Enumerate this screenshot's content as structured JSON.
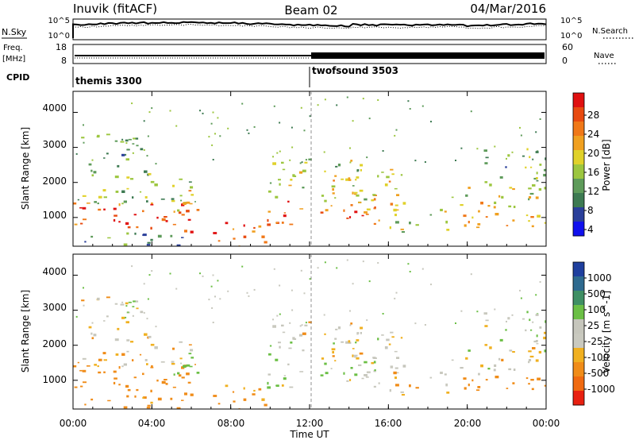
{
  "header": {
    "station": "Inuvik (fitACF)",
    "beam": "Beam 02",
    "date": "04/Mar/2016"
  },
  "noise_panel": {
    "left_label": "N.Sky",
    "right_label": "N.Search",
    "left_ticks": [
      "10^5",
      "10^0"
    ],
    "right_ticks": [
      "10^5",
      "10^0"
    ]
  },
  "freq_panel": {
    "left_label_line1": "Freq.",
    "left_label_line2": "[MHz]",
    "right_label": "Nave",
    "left_ticks": [
      "18",
      "8"
    ],
    "right_ticks": [
      "60",
      "0"
    ]
  },
  "cpid": {
    "label": "CPID",
    "segments": [
      {
        "name": "themis 3300",
        "start_hour": 0
      },
      {
        "name": "twofsound 3503",
        "start_hour": 12
      }
    ]
  },
  "x_axis": {
    "label": "Time UT",
    "ticks": [
      "00:00",
      "04:00",
      "08:00",
      "12:00",
      "16:00",
      "20:00",
      "00:00"
    ],
    "tick_hours": [
      0,
      4,
      8,
      12,
      16,
      20,
      24
    ]
  },
  "power_panel": {
    "ylabel": "Slant Range [km]",
    "yticks": [
      "1000",
      "2000",
      "3000",
      "4000"
    ],
    "colorbar_label": "Power [dB]",
    "colorbar_ticks": [
      "4",
      "8",
      "12",
      "16",
      "20",
      "24",
      "28"
    ]
  },
  "velocity_panel": {
    "ylabel": "Slant Range [km]",
    "yticks": [
      "1000",
      "2000",
      "3000",
      "4000"
    ],
    "colorbar_label": "Velocity [m s^-1]",
    "colorbar_ticks": [
      "1000",
      "500",
      "100",
      "25",
      "-25",
      "-100",
      "-500",
      "-1000"
    ]
  },
  "colors": {
    "power_scale": [
      "#1010ee",
      "#2a3f9a",
      "#3d7a52",
      "#5e9b5a",
      "#9cc63f",
      "#e0d12a",
      "#f0a020",
      "#f07818",
      "#e84a10",
      "#e01010"
    ],
    "velocity_scale": [
      "#1f3f9e",
      "#2e6a8f",
      "#3f8f64",
      "#6bbf45",
      "#c6c6bc",
      "#c9c9bf",
      "#f0b020",
      "#f08c18",
      "#f06a10",
      "#e82010"
    ]
  },
  "chart_data": {
    "type": "heatmap",
    "x_range_hours": [
      0,
      24
    ],
    "y_range_km": [
      180,
      4600
    ],
    "power_range_db": [
      0,
      30
    ],
    "velocity_range": [
      -1000,
      1000
    ],
    "scatter_regions": [
      {
        "t0": 0.0,
        "t1": 6.2,
        "r0": 600,
        "r1": 1500,
        "power": 26,
        "velocity": -300
      },
      {
        "t0": 0.0,
        "t1": 6.2,
        "r0": 1400,
        "r1": 2300,
        "power": 12,
        "velocity": -80
      },
      {
        "t0": 0.4,
        "t1": 3.6,
        "r0": 2300,
        "r1": 3500,
        "power": 10,
        "velocity": 10
      },
      {
        "t0": 4.8,
        "t1": 6.3,
        "r0": 1000,
        "r1": 1800,
        "power": 20,
        "velocity": 300
      },
      {
        "t0": 0.3,
        "t1": 5.5,
        "r0": 200,
        "r1": 650,
        "power": 8,
        "velocity": -200
      },
      {
        "t0": 7.0,
        "t1": 10.0,
        "r0": 200,
        "r1": 900,
        "power": 25,
        "velocity": -150
      },
      {
        "t0": 9.8,
        "t1": 15.6,
        "r0": 800,
        "r1": 1500,
        "power": 26,
        "velocity": 80
      },
      {
        "t0": 9.8,
        "t1": 15.0,
        "r0": 1500,
        "r1": 2700,
        "power": 14,
        "velocity": 10
      },
      {
        "t0": 13.0,
        "t1": 16.8,
        "r0": 1200,
        "r1": 2400,
        "power": 18,
        "velocity": 0
      },
      {
        "t0": 16.0,
        "t1": 19.0,
        "r0": 600,
        "r1": 1300,
        "power": 14,
        "velocity": -60
      },
      {
        "t0": 19.0,
        "t1": 24.0,
        "r0": 700,
        "r1": 1200,
        "power": 22,
        "velocity": -220
      },
      {
        "t0": 19.2,
        "t1": 24.0,
        "r0": 1200,
        "r1": 2000,
        "power": 16,
        "velocity": -5
      },
      {
        "t0": 20.5,
        "t1": 24.0,
        "r0": 2000,
        "r1": 3000,
        "power": 10,
        "velocity": 40
      }
    ]
  }
}
